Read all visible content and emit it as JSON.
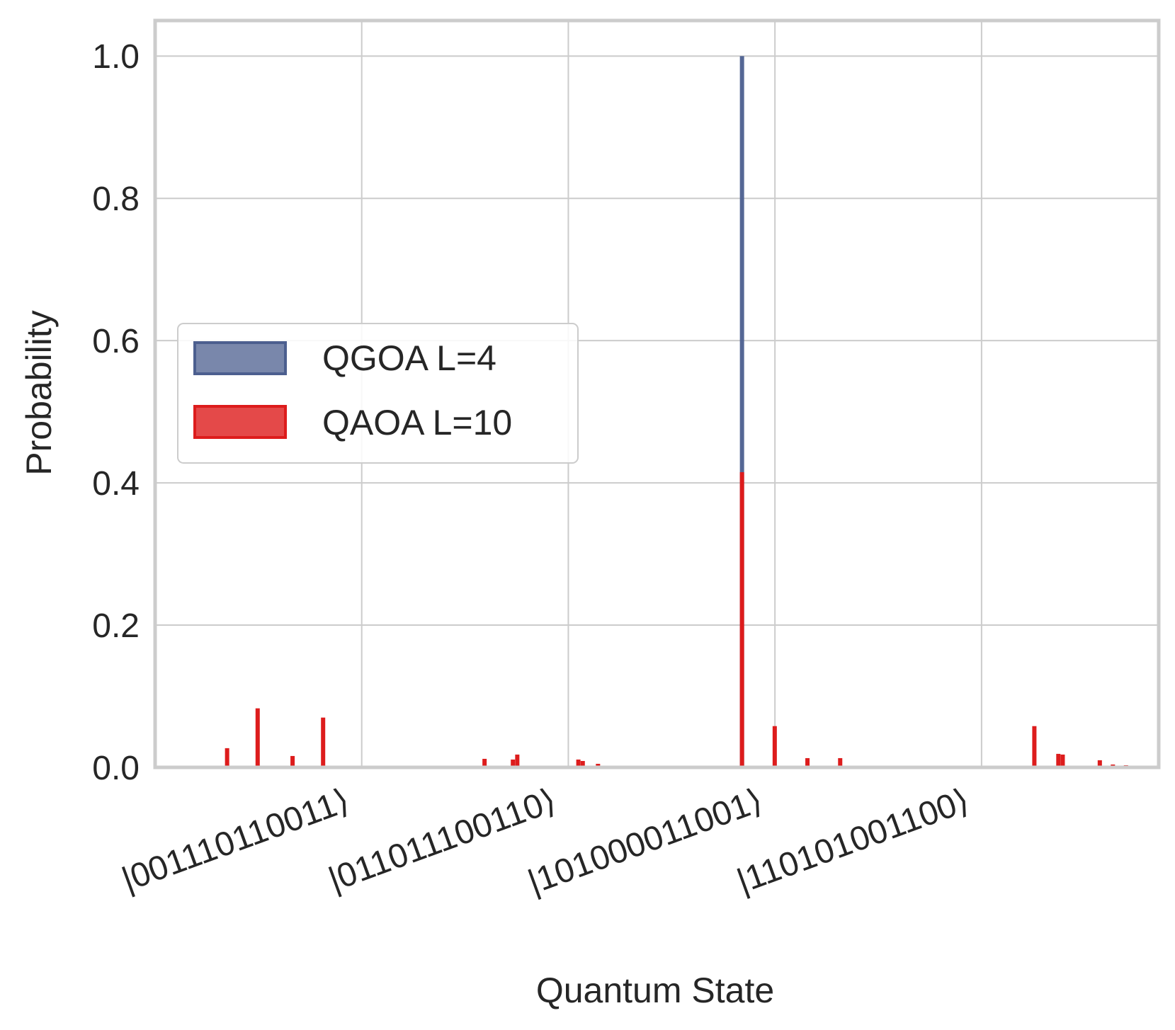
{
  "chart_data": {
    "type": "bar",
    "xlabel": "Quantum State",
    "ylabel": "Probability",
    "ylim": [
      0,
      1.05
    ],
    "yticks": [
      "0.0",
      "0.2",
      "0.4",
      "0.6",
      "0.8",
      "1.0"
    ],
    "xticks": [
      "|001110110011⟩",
      "|011011100110⟩",
      "|101000011001⟩",
      "|110101001100⟩"
    ],
    "xtick_positions": [
      947,
      1894,
      2841,
      3788
    ],
    "xlim": [
      0,
      4600
    ],
    "grid": true,
    "legend_placement": "center-left",
    "legend": [
      "QGOA L=4",
      "QAOA L=10"
    ],
    "colors": {
      "QGOA L=4": "#4c5f8f",
      "QAOA L=10": "#dd1c1c"
    },
    "series": [
      {
        "name": "QGOA L=4",
        "points": [
          {
            "x": 2690,
            "y": 1.0
          }
        ]
      },
      {
        "name": "QAOA L=10",
        "points": [
          {
            "x": 330,
            "y": 0.027
          },
          {
            "x": 470,
            "y": 0.083
          },
          {
            "x": 630,
            "y": 0.016
          },
          {
            "x": 770,
            "y": 0.07
          },
          {
            "x": 1510,
            "y": 0.012
          },
          {
            "x": 1640,
            "y": 0.011
          },
          {
            "x": 1660,
            "y": 0.018
          },
          {
            "x": 1940,
            "y": 0.011
          },
          {
            "x": 1960,
            "y": 0.009
          },
          {
            "x": 2030,
            "y": 0.005
          },
          {
            "x": 2690,
            "y": 0.415
          },
          {
            "x": 2840,
            "y": 0.058
          },
          {
            "x": 2990,
            "y": 0.013
          },
          {
            "x": 3140,
            "y": 0.013
          },
          {
            "x": 4030,
            "y": 0.058
          },
          {
            "x": 4140,
            "y": 0.019
          },
          {
            "x": 4160,
            "y": 0.018
          },
          {
            "x": 4330,
            "y": 0.01
          },
          {
            "x": 4390,
            "y": 0.004
          },
          {
            "x": 4450,
            "y": 0.003
          }
        ]
      }
    ]
  }
}
